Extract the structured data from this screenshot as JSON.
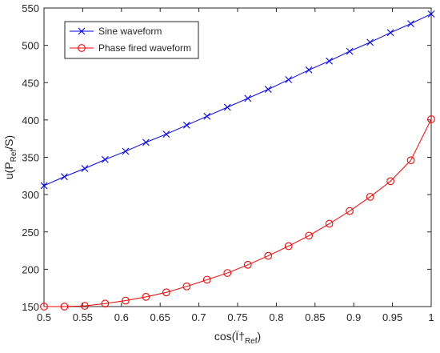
{
  "chart_data": {
    "type": "line",
    "xlabel": {
      "main": "cos(Ï†",
      "sub": "Ref",
      "close": ")"
    },
    "ylabel": {
      "main": "u(P",
      "sub": "Ref",
      "close": "/S)"
    },
    "xlim": [
      0.5,
      1.0
    ],
    "ylim": [
      150,
      550
    ],
    "xticks": [
      "0.5",
      "0.55",
      "0.6",
      "0.65",
      "0.7",
      "0.75",
      "0.8",
      "0.85",
      "0.9",
      "0.95",
      "1"
    ],
    "yticks": [
      "150",
      "200",
      "250",
      "300",
      "350",
      "400",
      "450",
      "500",
      "550"
    ],
    "grid": false,
    "legend_position": "top-left",
    "x": [
      0.5,
      0.5263,
      0.5526,
      0.5789,
      0.6053,
      0.6316,
      0.6579,
      0.6842,
      0.7105,
      0.7368,
      0.7632,
      0.7895,
      0.8158,
      0.8421,
      0.8684,
      0.8947,
      0.9211,
      0.9474,
      0.9737,
      1.0
    ],
    "series": [
      {
        "name": "Sine waveform",
        "color": "#0000ff",
        "marker": "x",
        "values": [
          312,
          324,
          335,
          347,
          358,
          370,
          381,
          393,
          405,
          417,
          429,
          441,
          454,
          467,
          479,
          492,
          504,
          517,
          529,
          542
        ]
      },
      {
        "name": "Phase fired waveform",
        "color": "#ff0000",
        "marker": "o",
        "values": [
          150,
          150,
          151,
          154,
          158,
          163,
          169,
          177,
          186,
          195,
          206,
          218,
          231,
          245,
          261,
          278,
          297,
          318,
          346,
          401
        ]
      }
    ]
  }
}
